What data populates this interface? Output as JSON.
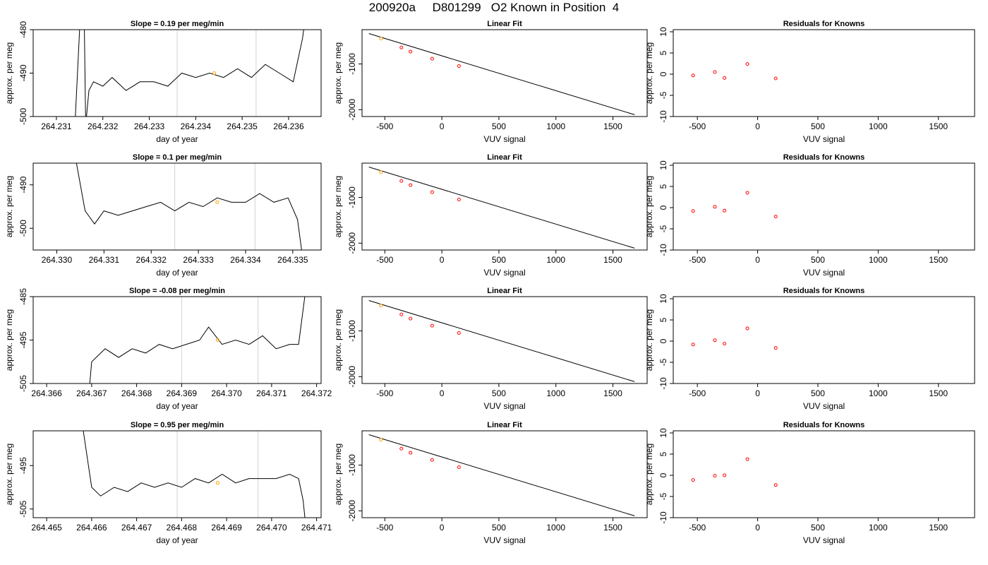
{
  "page": {
    "title": "200920a     D801299   O2 Known in Position  4"
  },
  "colors": {
    "line": "#000000",
    "known_point": "#ff0000",
    "highlight_point": "#ffa500",
    "vline": "#d3d3d3",
    "axis": "#000000"
  },
  "chart_data": [
    {
      "type": "line",
      "row": 1,
      "panel": "timeseries",
      "title": "Slope =  0.19  per meg/min",
      "xlabel": "day of year",
      "ylabel": "approx. per meg",
      "xlim": [
        264.2305,
        264.2367
      ],
      "ylim": [
        -500,
        -480
      ],
      "xticks": [
        264.231,
        264.232,
        264.233,
        264.234,
        264.235,
        264.236
      ],
      "xtick_labels": [
        "264.231",
        "264.232",
        "264.233",
        "264.234",
        "264.235",
        "264.236"
      ],
      "yticks": [
        -500,
        -490,
        -480
      ],
      "ytick_labels": [
        "-500",
        "-490",
        "-480"
      ],
      "vlines": [
        264.2336,
        264.2353
      ],
      "highlight": {
        "x": 264.2344,
        "y": -490
      },
      "x": [
        264.2314,
        264.2315,
        264.2316,
        264.23163,
        264.2317,
        264.2318,
        264.232,
        264.2322,
        264.2325,
        264.2328,
        264.2331,
        264.2334,
        264.2337,
        264.234,
        264.2343,
        264.2346,
        264.2349,
        264.2352,
        264.2355,
        264.2358,
        264.2361,
        264.2362,
        264.2363,
        264.23635
      ],
      "y": [
        -502,
        -480,
        -478,
        -502,
        -494,
        -492,
        -493,
        -491,
        -494,
        -492,
        -492,
        -493,
        -490,
        -491,
        -490,
        -491,
        -489,
        -491,
        -488,
        -490,
        -492,
        -487,
        -482,
        -478
      ]
    },
    {
      "type": "scatter",
      "row": 1,
      "panel": "fit",
      "title": "Linear Fit",
      "xlabel": "VUV signal",
      "ylabel": "approx. per meg",
      "xlim": [
        -700,
        1800
      ],
      "ylim": [
        -2150,
        -250
      ],
      "xticks": [
        -500,
        0,
        500,
        1000,
        1500
      ],
      "xtick_labels": [
        "-500",
        "0",
        "500",
        "1000",
        "1500"
      ],
      "yticks": [
        -1000,
        -2000
      ],
      "ytick_labels": [
        "-1000",
        "-2000"
      ],
      "x": [
        -535,
        -355,
        -275,
        -85,
        150
      ],
      "y": [
        -445,
        -640,
        -730,
        -885,
        -1045
      ],
      "highlight_index": 0,
      "fit_line": {
        "x": [
          -640,
          1690
        ],
        "y": [
          -335,
          -2110
        ]
      }
    },
    {
      "type": "scatter",
      "row": 1,
      "panel": "residuals",
      "title": "Residuals for Knowns",
      "xlabel": "VUV signal",
      "ylabel": "approx. per meg",
      "xlim": [
        -700,
        1800
      ],
      "ylim": [
        -10,
        10.5
      ],
      "xticks": [
        -500,
        0,
        500,
        1000,
        1500
      ],
      "xtick_labels": [
        "-500",
        "0",
        "500",
        "1000",
        "1500"
      ],
      "yticks": [
        -10,
        -5,
        0,
        5,
        10
      ],
      "ytick_labels": [
        "-10",
        "-5",
        "0",
        "5",
        "10"
      ],
      "x": [
        -535,
        -355,
        -275,
        -85,
        150
      ],
      "y": [
        -0.3,
        0.5,
        -0.9,
        2.4,
        -1.0
      ]
    },
    {
      "type": "line",
      "row": 2,
      "panel": "timeseries",
      "title": "Slope =  0.1  per meg/min",
      "xlabel": "day of year",
      "ylabel": "approx. per meg",
      "xlim": [
        264.3295,
        264.3356
      ],
      "ylim": [
        -505,
        -485
      ],
      "xticks": [
        264.33,
        264.331,
        264.332,
        264.333,
        264.334,
        264.335
      ],
      "xtick_labels": [
        "264.330",
        "264.331",
        "264.332",
        "264.333",
        "264.334",
        "264.335"
      ],
      "yticks": [
        -500,
        -490
      ],
      "ytick_labels": [
        "-500",
        "-490"
      ],
      "vlines": [
        264.3325,
        264.3342
      ],
      "highlight": {
        "x": 264.3334,
        "y": -494
      },
      "x": [
        264.3304,
        264.3306,
        264.3308,
        264.331,
        264.3313,
        264.3316,
        264.3319,
        264.3322,
        264.3325,
        264.3328,
        264.3331,
        264.3334,
        264.3337,
        264.334,
        264.3343,
        264.3346,
        264.3349,
        264.3351,
        264.3352
      ],
      "y": [
        -484,
        -496,
        -499,
        -496,
        -497,
        -496,
        -495,
        -494,
        -496,
        -494,
        -495,
        -493,
        -494,
        -494,
        -492,
        -494,
        -493,
        -498,
        -506
      ]
    },
    {
      "type": "scatter",
      "row": 2,
      "panel": "fit",
      "title": "Linear Fit",
      "xlabel": "VUV signal",
      "ylabel": "approx. per meg",
      "xlim": [
        -700,
        1800
      ],
      "ylim": [
        -2150,
        -250
      ],
      "xticks": [
        -500,
        0,
        500,
        1000,
        1500
      ],
      "xtick_labels": [
        "-500",
        "0",
        "500",
        "1000",
        "1500"
      ],
      "yticks": [
        -1000,
        -2000
      ],
      "ytick_labels": [
        "-1000",
        "-2000"
      ],
      "x": [
        -535,
        -355,
        -275,
        -85,
        150
      ],
      "y": [
        -445,
        -640,
        -730,
        -885,
        -1045
      ],
      "highlight_index": 0,
      "fit_line": {
        "x": [
          -640,
          1690
        ],
        "y": [
          -335,
          -2110
        ]
      }
    },
    {
      "type": "scatter",
      "row": 2,
      "panel": "residuals",
      "title": "Residuals for Knowns",
      "xlabel": "VUV signal",
      "ylabel": "approx. per meg",
      "xlim": [
        -700,
        1800
      ],
      "ylim": [
        -10,
        10.5
      ],
      "xticks": [
        -500,
        0,
        500,
        1000,
        1500
      ],
      "xtick_labels": [
        "-500",
        "0",
        "500",
        "1000",
        "1500"
      ],
      "yticks": [
        -10,
        -5,
        0,
        5,
        10
      ],
      "ytick_labels": [
        "-10",
        "-5",
        "0",
        "5",
        "10"
      ],
      "x": [
        -535,
        -355,
        -275,
        -85,
        150
      ],
      "y": [
        -0.8,
        0.2,
        -0.7,
        3.5,
        -2.1
      ]
    },
    {
      "type": "line",
      "row": 3,
      "panel": "timeseries",
      "title": "Slope =  -0.08  per meg/min",
      "xlabel": "day of year",
      "ylabel": "approx. per meg",
      "xlim": [
        264.3657,
        264.3721
      ],
      "ylim": [
        -505,
        -485
      ],
      "xticks": [
        264.366,
        264.367,
        264.368,
        264.369,
        264.37,
        264.371,
        264.372
      ],
      "xtick_labels": [
        "264.366",
        "264.367",
        "264.368",
        "264.369",
        "264.370",
        "264.371",
        "264.372"
      ],
      "yticks": [
        -505,
        -495,
        -485
      ],
      "ytick_labels": [
        "-505",
        "-495",
        "-485"
      ],
      "vlines": [
        264.369,
        264.3707
      ],
      "highlight": {
        "x": 264.3698,
        "y": -495
      },
      "x": [
        264.36695,
        264.367,
        264.3673,
        264.3676,
        264.3679,
        264.3682,
        264.3685,
        264.3688,
        264.3691,
        264.3694,
        264.3696,
        264.3699,
        264.3702,
        264.3705,
        264.3708,
        264.3711,
        264.3714,
        264.3716,
        264.3717,
        264.37175
      ],
      "y": [
        -506,
        -500,
        -497,
        -499,
        -497,
        -498,
        -496,
        -497,
        -496,
        -495,
        -492,
        -496,
        -495,
        -496,
        -494,
        -497,
        -496,
        -496,
        -488,
        -484
      ]
    },
    {
      "type": "scatter",
      "row": 3,
      "panel": "fit",
      "title": "Linear Fit",
      "xlabel": "VUV signal",
      "ylabel": "approx. per meg",
      "xlim": [
        -700,
        1800
      ],
      "ylim": [
        -2150,
        -250
      ],
      "xticks": [
        -500,
        0,
        500,
        1000,
        1500
      ],
      "xtick_labels": [
        "-500",
        "0",
        "500",
        "1000",
        "1500"
      ],
      "yticks": [
        -1000,
        -2000
      ],
      "ytick_labels": [
        "-1000",
        "-2000"
      ],
      "x": [
        -535,
        -355,
        -275,
        -85,
        150
      ],
      "y": [
        -445,
        -640,
        -730,
        -885,
        -1045
      ],
      "highlight_index": 0,
      "fit_line": {
        "x": [
          -640,
          1690
        ],
        "y": [
          -335,
          -2110
        ]
      }
    },
    {
      "type": "scatter",
      "row": 3,
      "panel": "residuals",
      "title": "Residuals for Knowns",
      "xlabel": "VUV signal",
      "ylabel": "approx. per meg",
      "xlim": [
        -700,
        1800
      ],
      "ylim": [
        -10,
        10.5
      ],
      "xticks": [
        -500,
        0,
        500,
        1000,
        1500
      ],
      "xtick_labels": [
        "-500",
        "0",
        "500",
        "1000",
        "1500"
      ],
      "yticks": [
        -10,
        -5,
        0,
        5,
        10
      ],
      "ytick_labels": [
        "-10",
        "-5",
        "0",
        "5",
        "10"
      ],
      "x": [
        -535,
        -355,
        -275,
        -85,
        150
      ],
      "y": [
        -0.8,
        0.2,
        -0.6,
        3.0,
        -1.6
      ]
    },
    {
      "type": "line",
      "row": 4,
      "panel": "timeseries",
      "title": "Slope =  0.95  per meg/min",
      "xlabel": "day of year",
      "ylabel": "approx. per meg",
      "xlim": [
        264.4647,
        264.4711
      ],
      "ylim": [
        -507,
        -487
      ],
      "xticks": [
        264.465,
        264.466,
        264.467,
        264.468,
        264.469,
        264.47,
        264.471
      ],
      "xtick_labels": [
        "264.465",
        "264.466",
        "264.467",
        "264.468",
        "264.469",
        "264.470",
        "264.471"
      ],
      "yticks": [
        -505,
        -495
      ],
      "ytick_labels": [
        "-505",
        "-495"
      ],
      "vlines": [
        264.4679,
        264.4697
      ],
      "highlight": {
        "x": 264.4688,
        "y": -499
      },
      "x": [
        264.4658,
        264.466,
        264.4662,
        264.4665,
        264.4668,
        264.4671,
        264.4674,
        264.4677,
        264.468,
        264.4683,
        264.4686,
        264.4689,
        264.4692,
        264.4695,
        264.4698,
        264.4701,
        264.4704,
        264.4706,
        264.4707,
        264.47075
      ],
      "y": [
        -486,
        -500,
        -502,
        -500,
        -501,
        -499,
        -500,
        -499,
        -500,
        -498,
        -499,
        -497,
        -499,
        -498,
        -498,
        -498,
        -497,
        -498,
        -503,
        -508
      ]
    },
    {
      "type": "scatter",
      "row": 4,
      "panel": "fit",
      "title": "Linear Fit",
      "xlabel": "VUV signal",
      "ylabel": "approx. per meg",
      "xlim": [
        -700,
        1800
      ],
      "ylim": [
        -2150,
        -250
      ],
      "xticks": [
        -500,
        0,
        500,
        1000,
        1500
      ],
      "xtick_labels": [
        "-500",
        "0",
        "500",
        "1000",
        "1500"
      ],
      "yticks": [
        -1000,
        -2000
      ],
      "ytick_labels": [
        "-1000",
        "-2000"
      ],
      "x": [
        -535,
        -355,
        -275,
        -85,
        150
      ],
      "y": [
        -445,
        -640,
        -730,
        -885,
        -1045
      ],
      "highlight_index": 0,
      "fit_line": {
        "x": [
          -640,
          1690
        ],
        "y": [
          -335,
          -2110
        ]
      }
    },
    {
      "type": "scatter",
      "row": 4,
      "panel": "residuals",
      "title": "Residuals for Knowns",
      "xlabel": "VUV signal",
      "ylabel": "approx. per meg",
      "xlim": [
        -700,
        1800
      ],
      "ylim": [
        -10,
        10.5
      ],
      "xticks": [
        -500,
        0,
        500,
        1000,
        1500
      ],
      "xtick_labels": [
        "-500",
        "0",
        "500",
        "1000",
        "1500"
      ],
      "yticks": [
        -10,
        -5,
        0,
        5,
        10
      ],
      "ytick_labels": [
        "-10",
        "-5",
        "0",
        "5",
        "10"
      ],
      "x": [
        -535,
        -355,
        -275,
        -85,
        150
      ],
      "y": [
        -1.1,
        -0.1,
        0.0,
        3.8,
        -2.3
      ]
    }
  ]
}
